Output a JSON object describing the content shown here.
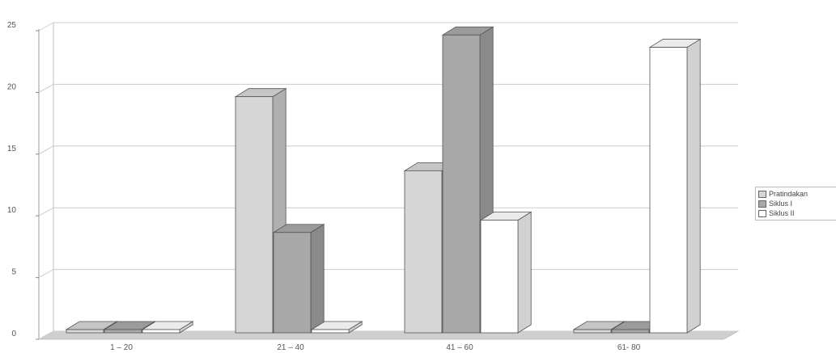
{
  "chart_data": {
    "type": "bar",
    "categories": [
      "1 – 20",
      "21 – 40",
      "41 – 60",
      "61- 80"
    ],
    "series": [
      {
        "name": "Pratindakan",
        "values": [
          0,
          19,
          13,
          0
        ],
        "color": "#d6d6d6"
      },
      {
        "name": "Siklus I",
        "values": [
          0,
          8,
          24,
          0
        ],
        "color": "#a8a8a8"
      },
      {
        "name": "Siklus II",
        "values": [
          0,
          0,
          9,
          23
        ],
        "color": "#ffffff"
      }
    ],
    "yticks": [
      "0",
      "5",
      "10",
      "15",
      "20",
      "25"
    ],
    "ylim": [
      0,
      25
    ],
    "grid": true,
    "legend_position": "right",
    "three_d": true
  }
}
